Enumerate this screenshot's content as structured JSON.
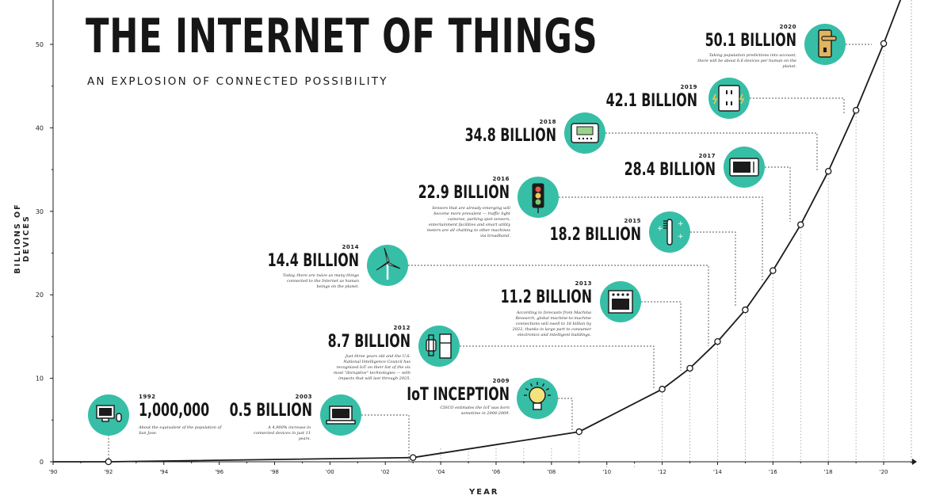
{
  "title": "THE INTERNET OF THINGS",
  "subtitle": "AN EXPLOSION OF CONNECTED POSSIBILITY",
  "colors": {
    "accent": "#36bfa6",
    "line": "#1b1b1b",
    "text": "#161616"
  },
  "chart_data": {
    "type": "line",
    "xlabel": "YEAR",
    "ylabel": "BILLIONS OF DEVICES",
    "xlim": [
      1990,
      2021
    ],
    "ylim": [
      0,
      55
    ],
    "x_ticks": [
      "'90",
      "'92",
      "'94",
      "'96",
      "'98",
      "'00",
      "'02",
      "'04",
      "'06",
      "'08",
      "'10",
      "'12",
      "'14",
      "'16",
      "'18",
      "'20"
    ],
    "y_ticks": [
      "0",
      "10",
      "20",
      "30",
      "40",
      "50"
    ],
    "x": [
      1990,
      1992,
      2003,
      2009,
      2012,
      2013,
      2014,
      2015,
      2016,
      2017,
      2018,
      2019,
      2020
    ],
    "values": [
      0,
      0.001,
      0.5,
      3.6,
      8.7,
      11.2,
      14.4,
      18.2,
      22.9,
      28.4,
      34.8,
      42.1,
      50.1
    ],
    "annotations": [
      {
        "year": "1992",
        "value": "1,000,000",
        "desc": "About the equivalent of the population of San Jose.",
        "icon": "desktop-computer-icon"
      },
      {
        "year": "2003",
        "value": "0.5 BILLION",
        "desc": "A 4,900% increase in connected devices in just 11 years.",
        "icon": "laptop-icon"
      },
      {
        "year": "2009",
        "value": "IoT INCEPTION",
        "desc": "CISCO estimates the IoT was born sometime in 2008-2009.",
        "icon": "lightbulb-icon"
      },
      {
        "year": "2012",
        "value": "8.7 BILLION",
        "desc": "Just three years old and the U.S. National Intelligence Council has recognized IoT on their list of the six most \"disruptive\" technologies — with impacts that will last through 2025.",
        "icon": "smartwatch-fridge-icon"
      },
      {
        "year": "2013",
        "value": "11.2 BILLION",
        "desc": "According to forecasts from Machina Research, global machine-to-machine connections will swell to 18 billion by 2022, thanks in large part to consumer electronics and intelligent buildings.",
        "icon": "oven-icon"
      },
      {
        "year": "2014",
        "value": "14.4 BILLION",
        "desc": "Today, there are twice as many things connected to the Internet as human beings on the planet.",
        "icon": "wind-turbine-icon"
      },
      {
        "year": "2015",
        "value": "18.2 BILLION",
        "desc": "",
        "icon": "toothbrush-icon"
      },
      {
        "year": "2016",
        "value": "22.9 BILLION",
        "desc": "Sensors that are already emerging will become more prevalent — traffic light cameras, parking spot sensors, entertainment facilities and smart utility meters are all chatting to other machines via broadband.",
        "icon": "traffic-light-icon"
      },
      {
        "year": "2017",
        "value": "28.4 BILLION",
        "desc": "",
        "icon": "microwave-icon"
      },
      {
        "year": "2018",
        "value": "34.8 BILLION",
        "desc": "",
        "icon": "thermostat-icon"
      },
      {
        "year": "2019",
        "value": "42.1 BILLION",
        "desc": "",
        "icon": "power-outlet-icon"
      },
      {
        "year": "2020",
        "value": "50.1 BILLION",
        "desc": "Taking population predictions into account, there will be about 6.6 devices per human on the planet.",
        "icon": "door-handle-icon"
      }
    ]
  }
}
